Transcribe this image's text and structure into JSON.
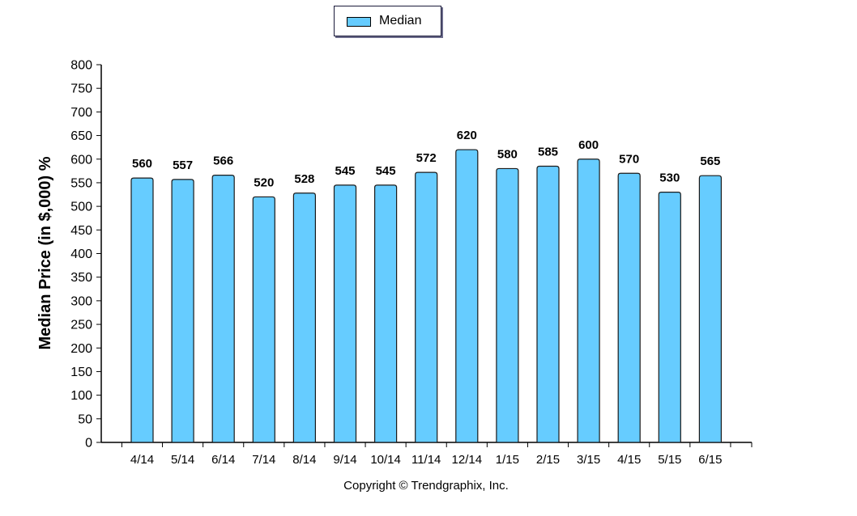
{
  "chart_data": {
    "type": "bar",
    "categories": [
      "4/14",
      "5/14",
      "6/14",
      "7/14",
      "8/14",
      "9/14",
      "10/14",
      "11/14",
      "12/14",
      "1/15",
      "2/15",
      "3/15",
      "4/15",
      "5/15",
      "6/15"
    ],
    "series": [
      {
        "name": "Median",
        "values": [
          560,
          557,
          566,
          520,
          528,
          545,
          545,
          572,
          620,
          580,
          585,
          600,
          570,
          530,
          565
        ],
        "color": "#66ccff"
      }
    ],
    "ylabel": "Median Price (in $,000) %",
    "xlabel": "",
    "ylim": [
      0,
      800
    ],
    "yticks": [
      0,
      50,
      100,
      150,
      200,
      250,
      300,
      350,
      400,
      450,
      500,
      550,
      600,
      650,
      700,
      750,
      800
    ],
    "legend": "top-center",
    "grid": false
  },
  "legend": {
    "label": "Median"
  },
  "footer": {
    "copyright": "Copyright © Trendgraphix, Inc."
  },
  "colors": {
    "bar_fill": "#66ccff",
    "bar_stroke": "#1a1a1a",
    "axis": "#000000"
  }
}
